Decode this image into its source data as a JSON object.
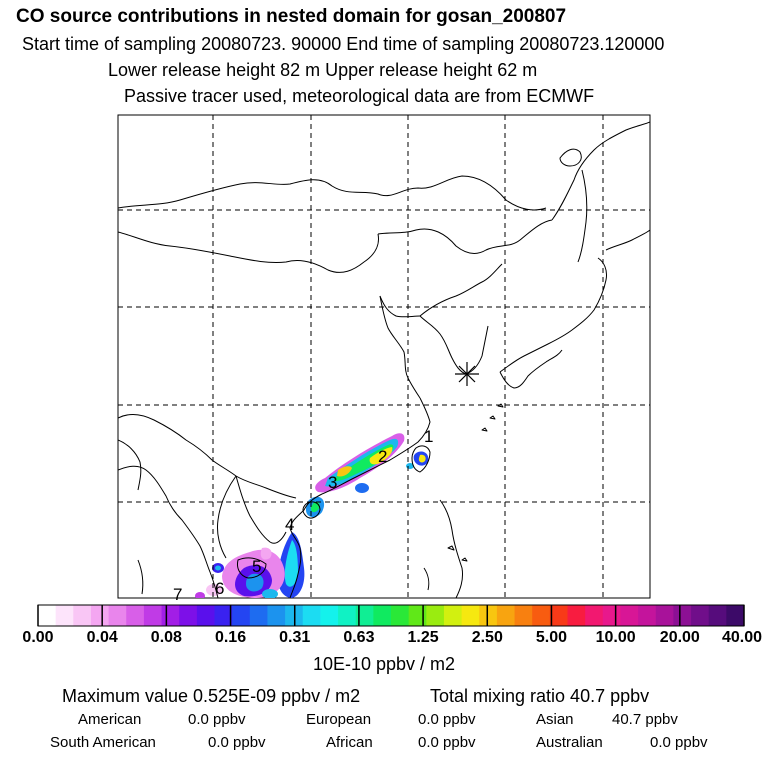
{
  "header": {
    "title": "CO  source contributions in nested domain for gosan_200807",
    "line1": "Start time of sampling 20080723. 90000     End time of sampling 20080723.120000",
    "line2": "Lower release height   82 m          Upper release height   62 m",
    "line3": "Passive tracer used, meteorological data are from ECMWF"
  },
  "map": {
    "receptor_marker": "asterisk-icon",
    "region_labels": [
      "1",
      "2",
      "3",
      "4",
      "5",
      "6",
      "7"
    ]
  },
  "colorbar": {
    "tick_labels": [
      "0.00",
      "0.04",
      "0.08",
      "0.16",
      "0.31",
      "0.63",
      "1.25",
      "2.50",
      "5.00",
      "10.00",
      "20.00",
      "40.00"
    ],
    "unit": "10E-10 ppbv / m2",
    "colors": [
      "#ffffff",
      "#fde4fb",
      "#f9c6f5",
      "#f4a6f1",
      "#e985ec",
      "#d85fe8",
      "#c03be6",
      "#a21ee6",
      "#7d10e8",
      "#5a10ec",
      "#3a22f0",
      "#2445f2",
      "#1e6cf0",
      "#1c93ee",
      "#1cb8ee",
      "#1cdcf2",
      "#14f2ec",
      "#10f2c4",
      "#10ee94",
      "#10ea60",
      "#2ae838",
      "#60e818",
      "#9aec10",
      "#d2f010",
      "#f6e810",
      "#f8c610",
      "#f8a410",
      "#f88010",
      "#f85c10",
      "#f83a18",
      "#f81c40",
      "#f21870",
      "#e8188c",
      "#d81696",
      "#c4149c",
      "#a8129a",
      "#8c1094",
      "#700e8a",
      "#560c7c",
      "#3c0a68"
    ]
  },
  "stats": {
    "max_label": "Maximum value  0.525E-09 ppbv / m2",
    "total_label": "Total mixing ratio        40.7 ppbv",
    "american_label": "American",
    "american_value": "0.0 ppbv",
    "european_label": "European",
    "european_value": "0.0 ppbv",
    "asian_label": "Asian",
    "asian_value": "40.7 ppbv",
    "south_american_label": "South American",
    "south_american_value": "0.0 ppbv",
    "african_label": "African",
    "african_value": "0.0 ppbv",
    "australian_label": "Australian",
    "australian_value": "0.0 ppbv"
  }
}
